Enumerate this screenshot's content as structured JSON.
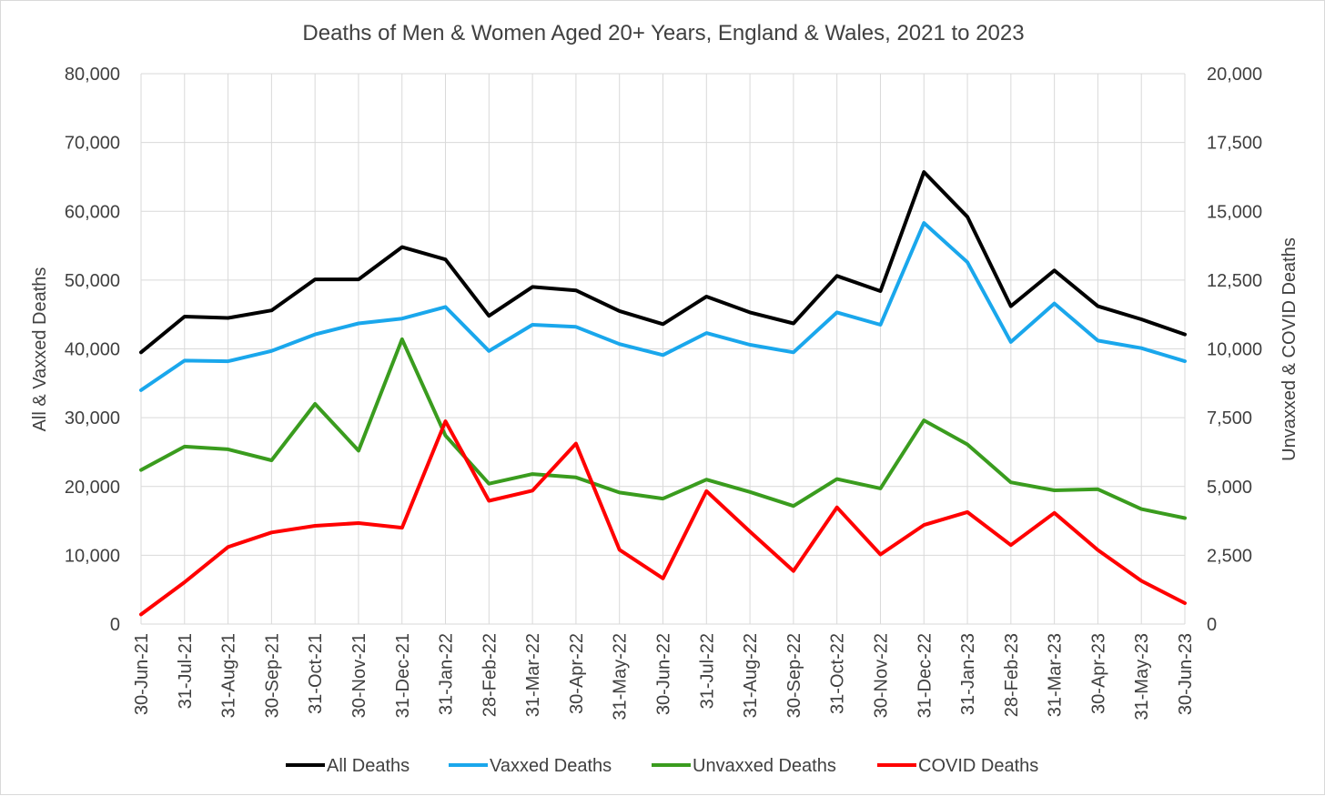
{
  "chart_data": {
    "type": "line",
    "title": "Deaths of Men & Women Aged 20+ Years, England & Wales, 2021 to 2023",
    "ylabel_left": "All & Vaxxed Deaths",
    "ylabel_right": "Unvaxxed & COVID Deaths",
    "ylim_left": [
      0,
      80000
    ],
    "ylim_right": [
      0,
      20000
    ],
    "yticks_left": [
      "0",
      "10,000",
      "20,000",
      "30,000",
      "40,000",
      "50,000",
      "60,000",
      "70,000",
      "80,000"
    ],
    "yticks_right": [
      "0",
      "2,500",
      "5,000",
      "7,500",
      "10,000",
      "12,500",
      "15,000",
      "17,500",
      "20,000"
    ],
    "grid": true,
    "legend_position": "bottom",
    "categories": [
      "30-Jun-21",
      "31-Jul-21",
      "31-Aug-21",
      "30-Sep-21",
      "31-Oct-21",
      "30-Nov-21",
      "31-Dec-21",
      "31-Jan-22",
      "28-Feb-22",
      "31-Mar-22",
      "30-Apr-22",
      "31-May-22",
      "30-Jun-22",
      "31-Jul-22",
      "31-Aug-22",
      "30-Sep-22",
      "31-Oct-22",
      "30-Nov-22",
      "31-Dec-22",
      "31-Jan-23",
      "28-Feb-23",
      "31-Mar-23",
      "30-Apr-23",
      "31-May-23",
      "30-Jun-23"
    ],
    "series": [
      {
        "name": "All Deaths",
        "axis": "left",
        "color": "#000000",
        "values": [
          39500,
          44700,
          44500,
          45600,
          50100,
          50100,
          54800,
          53000,
          44800,
          49000,
          48500,
          45500,
          43600,
          47600,
          45300,
          43700,
          50600,
          48400,
          65700,
          59200,
          46200,
          51400,
          46200,
          44300,
          42100
        ]
      },
      {
        "name": "Vaxxed Deaths",
        "axis": "left",
        "color": "#1aa7ec",
        "values": [
          34000,
          38300,
          38200,
          39700,
          42100,
          43700,
          44400,
          46100,
          39700,
          43500,
          43200,
          40700,
          39100,
          42300,
          40600,
          39500,
          45300,
          43500,
          58300,
          52600,
          41000,
          46600,
          41200,
          40100,
          38200
        ]
      },
      {
        "name": "Unvaxxed Deaths",
        "axis": "right",
        "color": "#3a9c1e",
        "values": [
          5600,
          6450,
          6350,
          5950,
          8000,
          6300,
          10350,
          6850,
          5100,
          5450,
          5330,
          4780,
          4560,
          5250,
          4800,
          4290,
          5270,
          4930,
          7400,
          6530,
          5150,
          4860,
          4900,
          4180,
          3850
        ]
      },
      {
        "name": "COVID Deaths",
        "axis": "right",
        "color": "#ff0000",
        "values": [
          350,
          1520,
          2800,
          3330,
          3570,
          3670,
          3500,
          7370,
          4480,
          4850,
          6560,
          2700,
          1660,
          4830,
          3360,
          1930,
          4240,
          2530,
          3600,
          4070,
          2870,
          4040,
          2690,
          1570,
          760
        ]
      }
    ]
  }
}
